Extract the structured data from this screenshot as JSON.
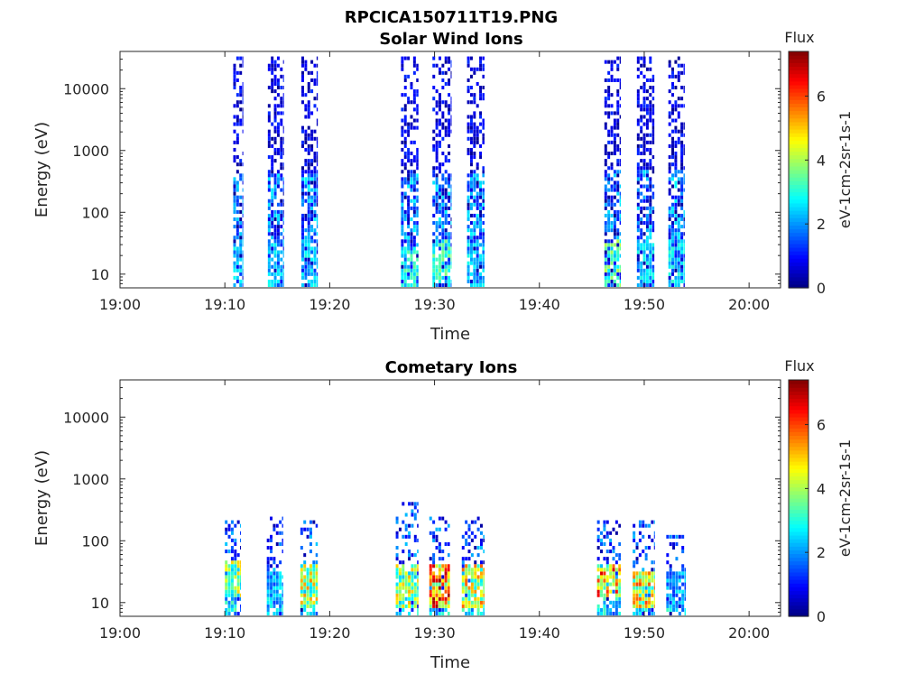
{
  "figure": {
    "title": "RPCICA150711T19.PNG"
  },
  "colorbar": {
    "title": "Flux",
    "unit": "eV-1cm-2sr-1s-1",
    "ticks": [
      "0",
      "2",
      "4",
      "6"
    ],
    "range": [
      0,
      7.4
    ],
    "colormap": "jet"
  },
  "chart_data": [
    {
      "type": "heatmap",
      "title": "Solar Wind Ions",
      "xlabel": "Time",
      "ylabel": "Energy (eV)",
      "x_ticks": [
        "19:00",
        "19:10",
        "19:20",
        "19:30",
        "19:40",
        "19:50",
        "20:00"
      ],
      "x_range_min": [
        0,
        63
      ],
      "y_ticks": [
        "10",
        "100",
        "1000",
        "10000"
      ],
      "y_scale": "log",
      "y_range": [
        6,
        40000
      ],
      "bursts": [
        {
          "start_min": 10.8,
          "end_min": 11.7,
          "low_flux_max_eV": 35000,
          "mid_flux_max_eV": 400,
          "high_flux_max_eV": 30,
          "peak_flux": 3.0
        },
        {
          "start_min": 14.1,
          "end_min": 15.6,
          "low_flux_max_eV": 35000,
          "mid_flux_max_eV": 400,
          "high_flux_max_eV": 30,
          "peak_flux": 3.0
        },
        {
          "start_min": 17.3,
          "end_min": 18.9,
          "low_flux_max_eV": 35000,
          "mid_flux_max_eV": 400,
          "high_flux_max_eV": 30,
          "peak_flux": 3.0
        },
        {
          "start_min": 26.8,
          "end_min": 28.5,
          "low_flux_max_eV": 35000,
          "mid_flux_max_eV": 400,
          "high_flux_max_eV": 30,
          "peak_flux": 3.5
        },
        {
          "start_min": 29.8,
          "end_min": 31.6,
          "low_flux_max_eV": 35000,
          "mid_flux_max_eV": 400,
          "high_flux_max_eV": 35,
          "peak_flux": 3.8
        },
        {
          "start_min": 33.1,
          "end_min": 34.8,
          "low_flux_max_eV": 35000,
          "mid_flux_max_eV": 400,
          "high_flux_max_eV": 30,
          "peak_flux": 3.0
        },
        {
          "start_min": 46.2,
          "end_min": 47.8,
          "low_flux_max_eV": 35000,
          "mid_flux_max_eV": 500,
          "high_flux_max_eV": 35,
          "peak_flux": 4.2
        },
        {
          "start_min": 49.3,
          "end_min": 51.0,
          "low_flux_max_eV": 35000,
          "mid_flux_max_eV": 500,
          "high_flux_max_eV": 30,
          "peak_flux": 3.0
        },
        {
          "start_min": 52.3,
          "end_min": 53.9,
          "low_flux_max_eV": 35000,
          "mid_flux_max_eV": 500,
          "high_flux_max_eV": 35,
          "peak_flux": 3.2
        }
      ]
    },
    {
      "type": "heatmap",
      "title": "Cometary Ions",
      "xlabel": "Time",
      "ylabel": "Energy (eV)",
      "x_ticks": [
        "19:00",
        "19:10",
        "19:20",
        "19:30",
        "19:40",
        "19:50",
        "20:00"
      ],
      "x_range_min": [
        0,
        63
      ],
      "y_ticks": [
        "10",
        "100",
        "1000",
        "10000"
      ],
      "y_scale": "log",
      "y_range": [
        6,
        40000
      ],
      "bursts": [
        {
          "start_min": 10.0,
          "end_min": 11.5,
          "low_flux_max_eV": 220,
          "core_min_eV": 12,
          "core_max_eV": 50,
          "peak_flux": 5.2
        },
        {
          "start_min": 14.0,
          "end_min": 15.6,
          "low_flux_max_eV": 230,
          "core_min_eV": 8,
          "core_max_eV": 30,
          "peak_flux": 3.0
        },
        {
          "start_min": 17.2,
          "end_min": 18.9,
          "low_flux_max_eV": 220,
          "core_min_eV": 8,
          "core_max_eV": 40,
          "peak_flux": 5.5
        },
        {
          "start_min": 26.3,
          "end_min": 28.5,
          "low_flux_max_eV": 400,
          "core_min_eV": 8,
          "core_max_eV": 40,
          "peak_flux": 5.2
        },
        {
          "start_min": 29.5,
          "end_min": 31.5,
          "low_flux_max_eV": 230,
          "core_min_eV": 8,
          "core_max_eV": 40,
          "peak_flux": 7.2
        },
        {
          "start_min": 32.6,
          "end_min": 34.8,
          "low_flux_max_eV": 230,
          "core_min_eV": 8,
          "core_max_eV": 40,
          "peak_flux": 5.8
        },
        {
          "start_min": 45.5,
          "end_min": 47.8,
          "low_flux_max_eV": 220,
          "core_min_eV": 12,
          "core_max_eV": 40,
          "peak_flux": 6.8
        },
        {
          "start_min": 48.9,
          "end_min": 51.0,
          "low_flux_max_eV": 220,
          "core_min_eV": 8,
          "core_max_eV": 30,
          "peak_flux": 6.0
        },
        {
          "start_min": 52.1,
          "end_min": 54.0,
          "low_flux_max_eV": 150,
          "core_min_eV": 8,
          "core_max_eV": 30,
          "peak_flux": 2.8
        }
      ]
    }
  ]
}
